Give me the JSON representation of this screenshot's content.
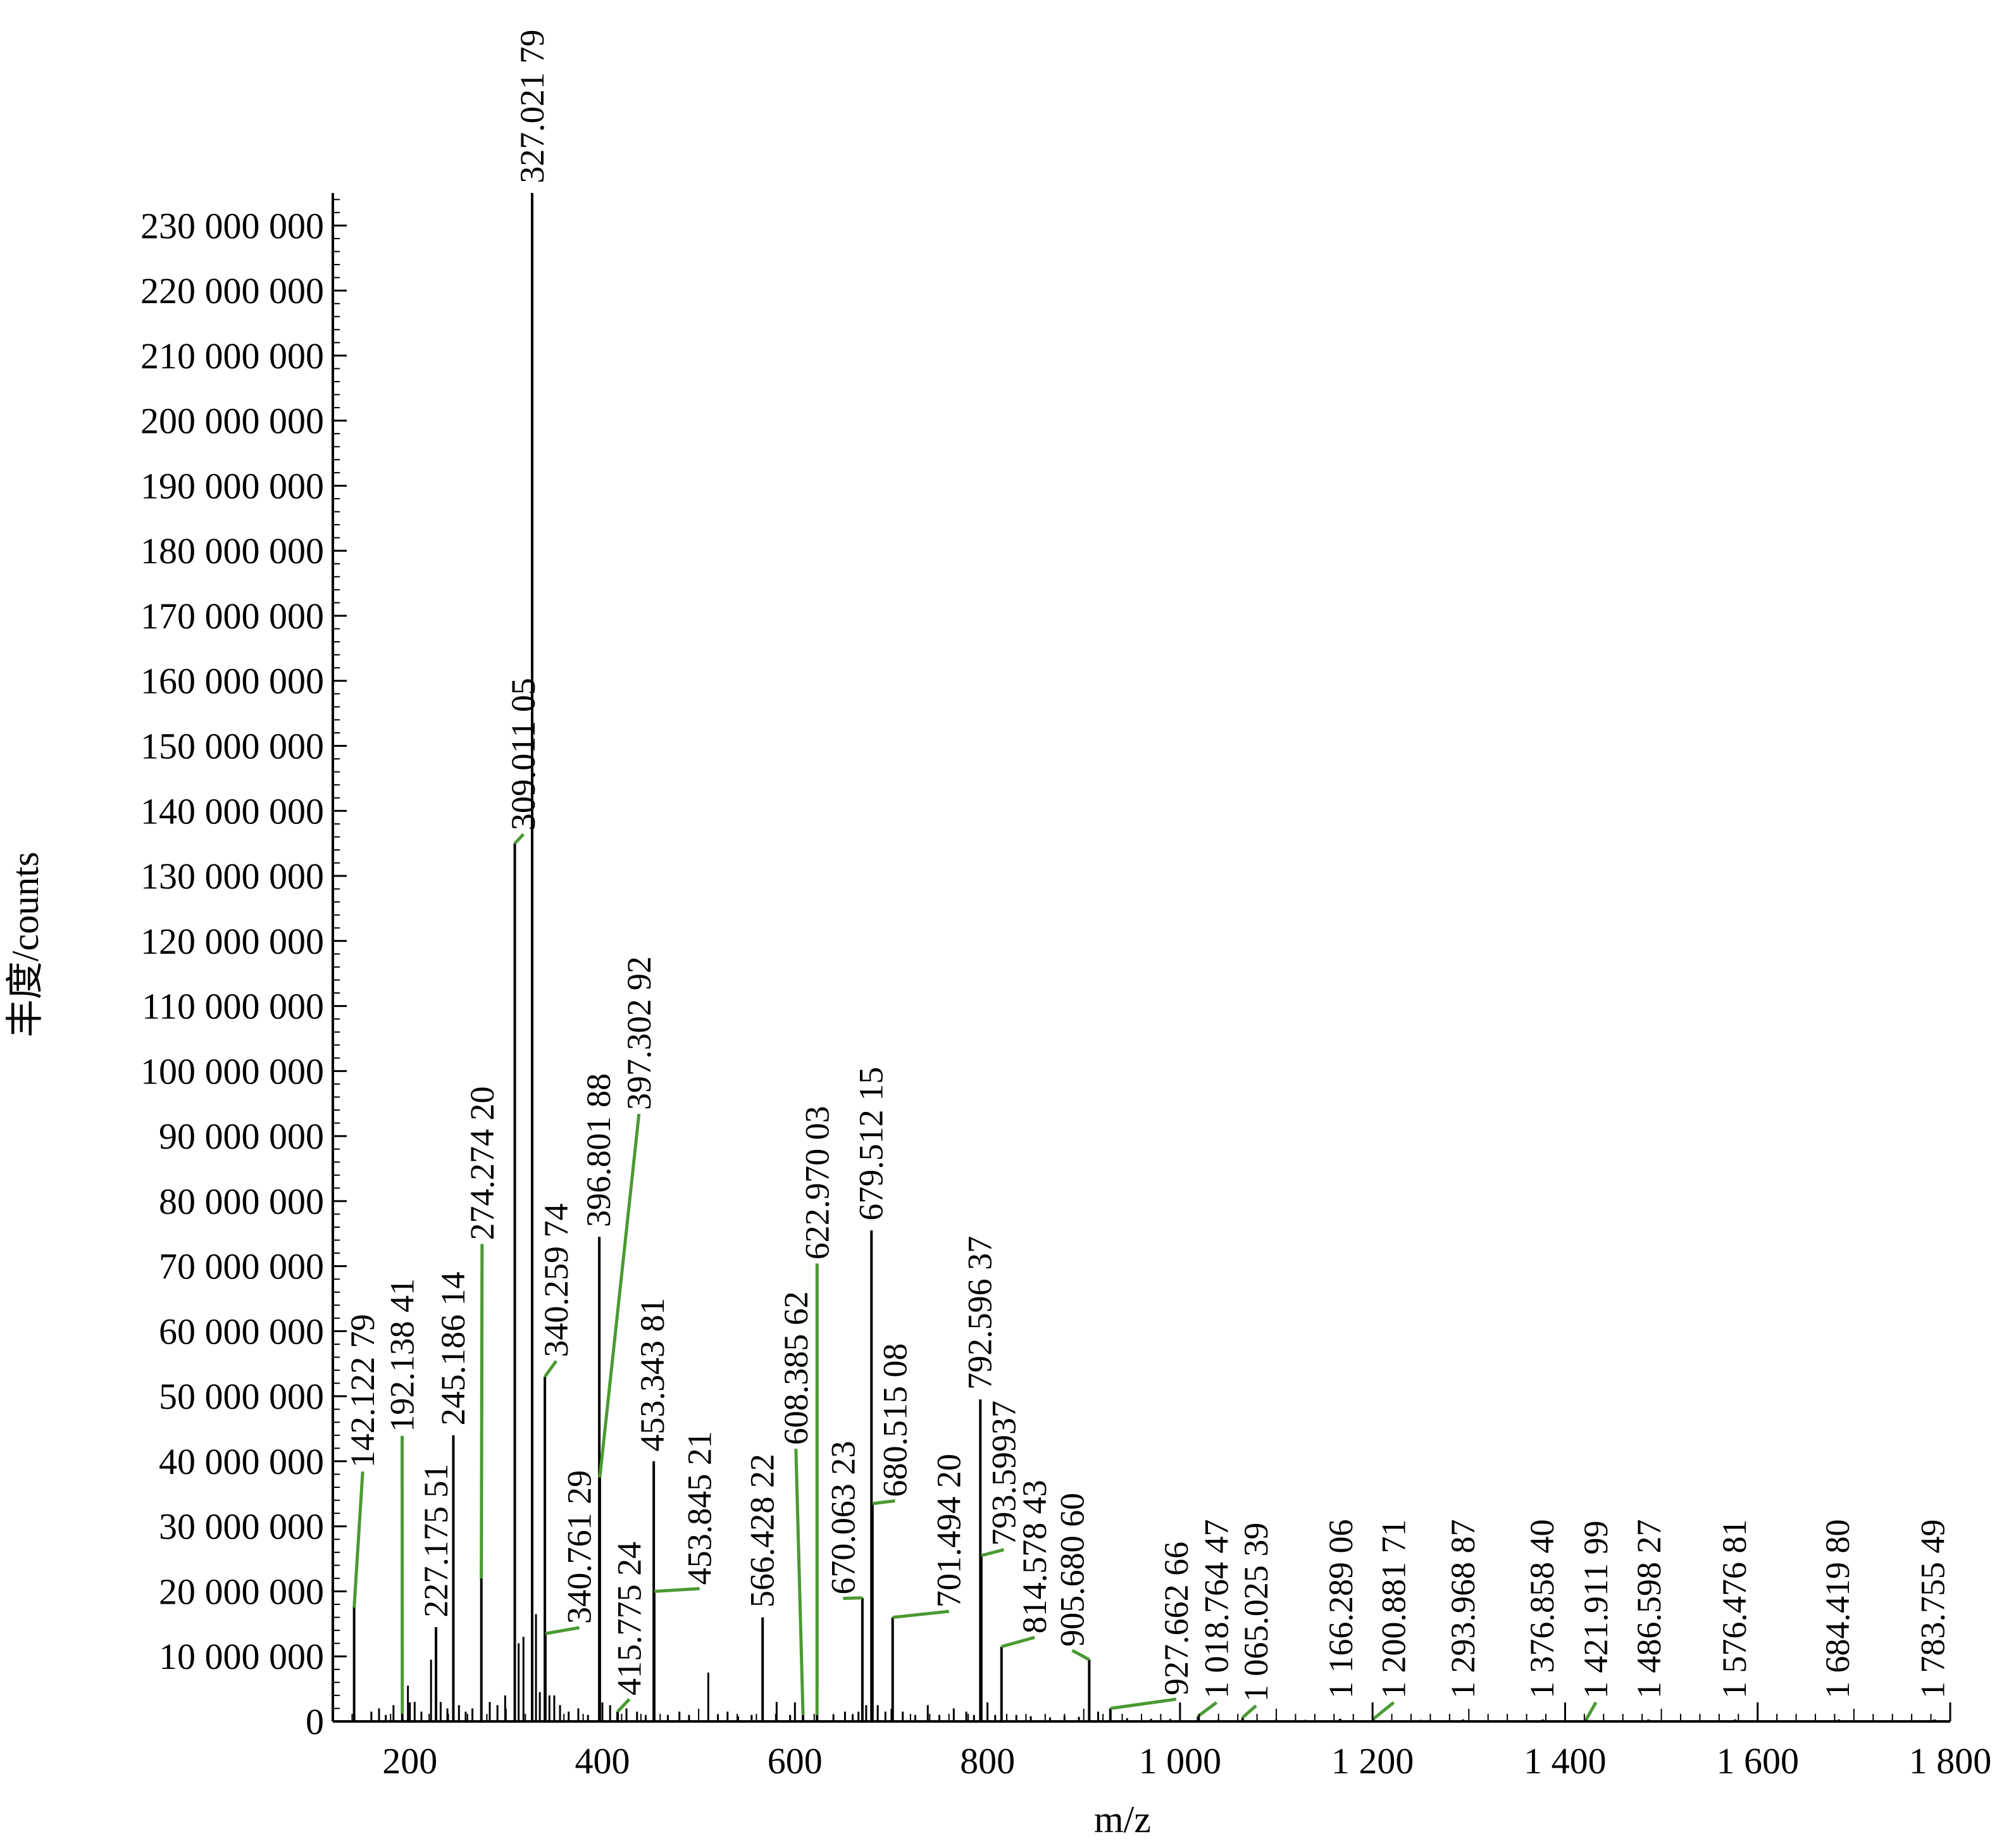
{
  "chart_data": {
    "type": "bar",
    "title": "",
    "xlabel": "m/z",
    "ylabel": "丰度/counts",
    "xlim": [
      120,
      1800
    ],
    "ylim": [
      0,
      235000000
    ],
    "grid": false,
    "legend": "none",
    "x_ticks": [
      {
        "value": 200,
        "label": "200"
      },
      {
        "value": 400,
        "label": "400"
      },
      {
        "value": 600,
        "label": "600"
      },
      {
        "value": 800,
        "label": "800"
      },
      {
        "value": 1000,
        "label": "1 000"
      },
      {
        "value": 1200,
        "label": "1 200"
      },
      {
        "value": 1400,
        "label": "1 400"
      },
      {
        "value": 1600,
        "label": "1 600"
      },
      {
        "value": 1800,
        "label": "1 800"
      }
    ],
    "y_ticks": [
      {
        "value": 0,
        "label": "0"
      },
      {
        "value": 10000000,
        "label": "10 000 000"
      },
      {
        "value": 20000000,
        "label": "20 000 000"
      },
      {
        "value": 30000000,
        "label": "30 000 000"
      },
      {
        "value": 40000000,
        "label": "40 000 000"
      },
      {
        "value": 50000000,
        "label": "50 000 000"
      },
      {
        "value": 60000000,
        "label": "60 000 000"
      },
      {
        "value": 70000000,
        "label": "70 000 000"
      },
      {
        "value": 80000000,
        "label": "80 000 000"
      },
      {
        "value": 90000000,
        "label": "90 000 000"
      },
      {
        "value": 100000000,
        "label": "100 000 000"
      },
      {
        "value": 110000000,
        "label": "110 000 000"
      },
      {
        "value": 120000000,
        "label": "120 000 000"
      },
      {
        "value": 130000000,
        "label": "130 000 000"
      },
      {
        "value": 140000000,
        "label": "140 000 000"
      },
      {
        "value": 150000000,
        "label": "150 000 000"
      },
      {
        "value": 160000000,
        "label": "160 000 000"
      },
      {
        "value": 170000000,
        "label": "170 000 000"
      },
      {
        "value": 180000000,
        "label": "180 000 000"
      },
      {
        "value": 190000000,
        "label": "190 000 000"
      },
      {
        "value": 200000000,
        "label": "200 000 000"
      },
      {
        "value": 210000000,
        "label": "210 000 000"
      },
      {
        "value": 220000000,
        "label": "220 000 000"
      },
      {
        "value": 230000000,
        "label": "230 000 000"
      }
    ],
    "peaks": [
      {
        "mz": 142.12279,
        "intensity": 17500000,
        "label": "142.122 79",
        "label_mz": 151,
        "label_value": 39000000,
        "leader": true
      },
      {
        "mz": 192.13841,
        "intensity": 1200000,
        "label": "192.138 41",
        "label_mz": 192,
        "label_value": 44500000,
        "leader": true
      },
      {
        "mz": 227.17551,
        "intensity": 14500000,
        "label": "227.175 51",
        "label_mz": 227,
        "label_value": 16000000,
        "leader": false
      },
      {
        "mz": 245.18614,
        "intensity": 44000000,
        "label": "245.186 14",
        "label_mz": 245,
        "label_value": 45500000,
        "leader": false
      },
      {
        "mz": 274.2742,
        "intensity": 22000000,
        "label": "274.274 20",
        "label_mz": 275,
        "label_value": 74000000,
        "leader": true
      },
      {
        "mz": 309.01105,
        "intensity": 135000000,
        "label": "309.011 05",
        "label_mz": 318,
        "label_value": 137000000,
        "leader": true
      },
      {
        "mz": 327.02179,
        "intensity": 235000000,
        "label": "327.021 79",
        "label_mz": 327,
        "label_value": 236500000,
        "leader": false
      },
      {
        "mz": 340.25974,
        "intensity": 53000000,
        "label": "340.259 74",
        "label_mz": 352,
        "label_value": 56000000,
        "leader": true
      },
      {
        "mz": 340.76129,
        "intensity": 13500000,
        "label": "340.761 29",
        "label_mz": 376,
        "label_value": 15000000,
        "leader": true
      },
      {
        "mz": 396.80188,
        "intensity": 74500000,
        "label": "396.801 88",
        "label_mz": 396,
        "label_value": 76000000,
        "leader": false
      },
      {
        "mz": 397.30292,
        "intensity": 37500000,
        "label": "397.302 92",
        "label_mz": 438,
        "label_value": 94000000,
        "leader": true
      },
      {
        "mz": 415.77524,
        "intensity": 1500000,
        "label": "415.775 24",
        "label_mz": 428,
        "label_value": 4000000,
        "leader": true
      },
      {
        "mz": 453.34381,
        "intensity": 40000000,
        "label": "453.343 81",
        "label_mz": 452,
        "label_value": 41500000,
        "leader": false
      },
      {
        "mz": 453.84521,
        "intensity": 20000000,
        "label": "453.845 21",
        "label_mz": 501,
        "label_value": 21000000,
        "leader": true
      },
      {
        "mz": 566.42822,
        "intensity": 16000000,
        "label": "566.428 22",
        "label_mz": 566,
        "label_value": 17500000,
        "leader": false
      },
      {
        "mz": 608.38562,
        "intensity": 1000000,
        "label": "608.385 62",
        "label_mz": 601,
        "label_value": 42500000,
        "leader": true
      },
      {
        "mz": 622.97003,
        "intensity": 1000000,
        "label": "622.970 03",
        "label_mz": 623,
        "label_value": 71000000,
        "leader": true
      },
      {
        "mz": 670.06323,
        "intensity": 19000000,
        "label": "670.063 23",
        "label_mz": 650,
        "label_value": 19500000,
        "leader": true
      },
      {
        "mz": 679.51215,
        "intensity": 75500000,
        "label": "679.512 15",
        "label_mz": 679,
        "label_value": 77000000,
        "leader": false
      },
      {
        "mz": 680.51508,
        "intensity": 33500000,
        "label": "680.515 08",
        "label_mz": 704,
        "label_value": 34500000,
        "leader": true
      },
      {
        "mz": 701.4942,
        "intensity": 16000000,
        "label": "701.494 20",
        "label_mz": 760,
        "label_value": 17500000,
        "leader": true
      },
      {
        "mz": 792.59637,
        "intensity": 49500000,
        "label": "792.596 37",
        "label_mz": 792,
        "label_value": 51000000,
        "leader": false
      },
      {
        "mz": 793.59937,
        "intensity": 25500000,
        "label": "793.59937",
        "label_mz": 817,
        "label_value": 27000000,
        "leader": true
      },
      {
        "mz": 814.57843,
        "intensity": 11500000,
        "label": "814.578 43",
        "label_mz": 849,
        "label_value": 13500000,
        "leader": true
      },
      {
        "mz": 905.6806,
        "intensity": 9500000,
        "label": "905.680 60",
        "label_mz": 888,
        "label_value": 11500000,
        "leader": true
      },
      {
        "mz": 927.66266,
        "intensity": 2000000,
        "label": "927.662 66",
        "label_mz": 996,
        "label_value": 4000000,
        "leader": true
      },
      {
        "mz": 1018.76447,
        "intensity": 800000,
        "label": "1 018.764 47",
        "label_mz": 1038,
        "label_value": 3500000,
        "leader": true
      },
      {
        "mz": 1065.02539,
        "intensity": 600000,
        "label": "1 065.025 39",
        "label_mz": 1079,
        "label_value": 3000000,
        "leader": true
      },
      {
        "mz": 1166.28906,
        "intensity": 400000,
        "label": "1 166.289 06",
        "label_mz": 1167,
        "label_value": 3500000,
        "leader": false
      },
      {
        "mz": 1200.88171,
        "intensity": 400000,
        "label": "1 200.881 71",
        "label_mz": 1222,
        "label_value": 3500000,
        "leader": true
      },
      {
        "mz": 1293.96887,
        "intensity": 300000,
        "label": "1 293.968 87",
        "label_mz": 1294,
        "label_value": 3500000,
        "leader": false
      },
      {
        "mz": 1376.8584,
        "intensity": 300000,
        "label": "1 376.858 40",
        "label_mz": 1376,
        "label_value": 3500000,
        "leader": false
      },
      {
        "mz": 1421.91199,
        "intensity": 300000,
        "label": "1 421.911 99",
        "label_mz": 1432,
        "label_value": 3500000,
        "leader": true
      },
      {
        "mz": 1486.59827,
        "intensity": 300000,
        "label": "1 486.598 27",
        "label_mz": 1487,
        "label_value": 3500000,
        "leader": false
      },
      {
        "mz": 1576.47681,
        "intensity": 300000,
        "label": "1 576.476 81",
        "label_mz": 1576,
        "label_value": 3500000,
        "leader": false
      },
      {
        "mz": 1684.4198,
        "intensity": 300000,
        "label": "1 684.419 80",
        "label_mz": 1683,
        "label_value": 3500000,
        "leader": false
      },
      {
        "mz": 1783.75549,
        "intensity": 300000,
        "label": "1 783.755 49",
        "label_mz": 1782,
        "label_value": 3500000,
        "leader": false
      }
    ],
    "minor_peaks": [
      {
        "mz": 160,
        "intensity": 1500000
      },
      {
        "mz": 168,
        "intensity": 2000000
      },
      {
        "mz": 175,
        "intensity": 1000000
      },
      {
        "mz": 183,
        "intensity": 2500000
      },
      {
        "mz": 198,
        "intensity": 5500000
      },
      {
        "mz": 205,
        "intensity": 3000000
      },
      {
        "mz": 212,
        "intensity": 1500000
      },
      {
        "mz": 222,
        "intensity": 9500000
      },
      {
        "mz": 232,
        "intensity": 3000000
      },
      {
        "mz": 239,
        "intensity": 2000000
      },
      {
        "mz": 251,
        "intensity": 2500000
      },
      {
        "mz": 258,
        "intensity": 1500000
      },
      {
        "mz": 265,
        "intensity": 2000000
      },
      {
        "mz": 283,
        "intensity": 3000000
      },
      {
        "mz": 291,
        "intensity": 2500000
      },
      {
        "mz": 299,
        "intensity": 4000000
      },
      {
        "mz": 313,
        "intensity": 12000000
      },
      {
        "mz": 318,
        "intensity": 13000000
      },
      {
        "mz": 331,
        "intensity": 16500000
      },
      {
        "mz": 335,
        "intensity": 4500000
      },
      {
        "mz": 345,
        "intensity": 4000000
      },
      {
        "mz": 350,
        "intensity": 4000000
      },
      {
        "mz": 356,
        "intensity": 2500000
      },
      {
        "mz": 365,
        "intensity": 1500000
      },
      {
        "mz": 375,
        "intensity": 2000000
      },
      {
        "mz": 385,
        "intensity": 1000000
      },
      {
        "mz": 408,
        "intensity": 2500000
      },
      {
        "mz": 425,
        "intensity": 2000000
      },
      {
        "mz": 436,
        "intensity": 1500000
      },
      {
        "mz": 445,
        "intensity": 1000000
      },
      {
        "mz": 468,
        "intensity": 1000000
      },
      {
        "mz": 480,
        "intensity": 1500000
      },
      {
        "mz": 490,
        "intensity": 1000000
      },
      {
        "mz": 510,
        "intensity": 7500000
      },
      {
        "mz": 520,
        "intensity": 1000000
      },
      {
        "mz": 530,
        "intensity": 1500000
      },
      {
        "mz": 541,
        "intensity": 800000
      },
      {
        "mz": 555,
        "intensity": 1000000
      },
      {
        "mz": 581,
        "intensity": 3000000
      },
      {
        "mz": 595,
        "intensity": 1000000
      },
      {
        "mz": 640,
        "intensity": 1000000
      },
      {
        "mz": 652,
        "intensity": 1500000
      },
      {
        "mz": 660,
        "intensity": 1000000
      },
      {
        "mz": 666,
        "intensity": 1500000
      },
      {
        "mz": 674,
        "intensity": 2500000
      },
      {
        "mz": 686,
        "intensity": 2500000
      },
      {
        "mz": 694,
        "intensity": 1500000
      },
      {
        "mz": 712,
        "intensity": 1500000
      },
      {
        "mz": 725,
        "intensity": 1000000
      },
      {
        "mz": 738,
        "intensity": 2500000
      },
      {
        "mz": 750,
        "intensity": 1000000
      },
      {
        "mz": 765,
        "intensity": 2000000
      },
      {
        "mz": 778,
        "intensity": 1500000
      },
      {
        "mz": 786,
        "intensity": 1000000
      },
      {
        "mz": 800,
        "intensity": 1500000
      },
      {
        "mz": 808,
        "intensity": 1000000
      },
      {
        "mz": 830,
        "intensity": 1000000
      },
      {
        "mz": 845,
        "intensity": 800000
      },
      {
        "mz": 865,
        "intensity": 600000
      },
      {
        "mz": 880,
        "intensity": 800000
      },
      {
        "mz": 895,
        "intensity": 700000
      },
      {
        "mz": 915,
        "intensity": 1500000
      },
      {
        "mz": 945,
        "intensity": 500000
      },
      {
        "mz": 970,
        "intensity": 400000
      },
      {
        "mz": 990,
        "intensity": 400000
      },
      {
        "mz": 1040,
        "intensity": 300000
      },
      {
        "mz": 1100,
        "intensity": 300000
      },
      {
        "mz": 1130,
        "intensity": 250000
      },
      {
        "mz": 1250,
        "intensity": 250000
      },
      {
        "mz": 1330,
        "intensity": 200000
      }
    ],
    "colors": {
      "axis": "#000000",
      "peak": "#000000",
      "leader": "#4a9a32",
      "text": "#000000",
      "background": "#ffffff"
    }
  }
}
